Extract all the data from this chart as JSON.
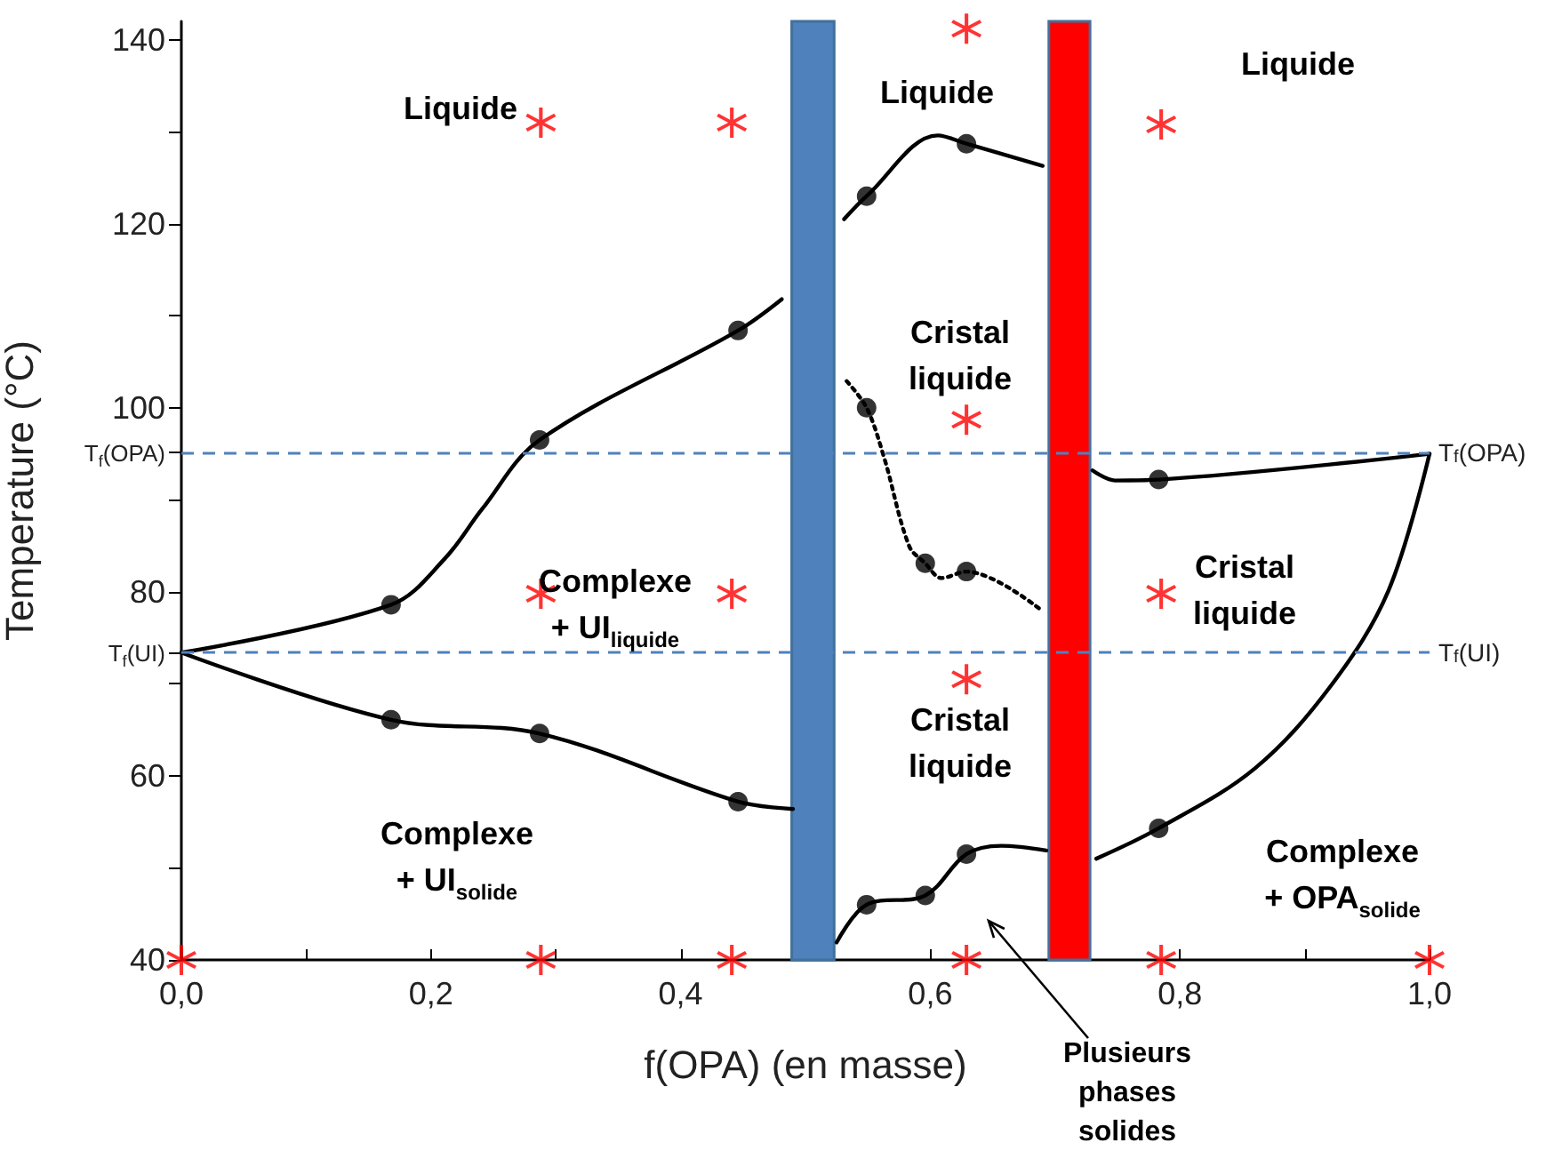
{
  "chart_data": {
    "type": "line",
    "xlabel": "f(OPA) (en masse)",
    "ylabel": "Temperature (°C)",
    "xlim": [
      0,
      1
    ],
    "xticks": [
      {
        "value": 0,
        "label": "0,0"
      },
      {
        "value": 0.1,
        "label": null
      },
      {
        "value": 0.2,
        "label": "0,2"
      },
      {
        "value": 0.3,
        "label": null
      },
      {
        "value": 0.4,
        "label": "0,4"
      },
      {
        "value": 0.5,
        "label": null
      },
      {
        "value": 0.6,
        "label": "0,6"
      },
      {
        "value": 0.7,
        "label": null
      },
      {
        "value": 0.8,
        "label": "0,8"
      },
      {
        "value": 0.9,
        "label": null
      },
      {
        "value": 1,
        "label": "1,0"
      }
    ],
    "ylim": [
      40,
      142
    ],
    "yticks": [
      40,
      {
        "value": 50,
        "label": null
      },
      60,
      {
        "value": 70,
        "label": null
      },
      {
        "value": 73.4,
        "label": "T$_{f}$(UI)"
      },
      80,
      {
        "value": 90,
        "label": null
      },
      {
        "value": 95.2,
        "label": "T$_{f}$(OPA)"
      },
      100,
      {
        "value": 110,
        "label": null
      },
      120,
      {
        "value": 130,
        "label": null
      },
      140
    ],
    "grid": false,
    "series": [
      {
        "color": "#000000",
        "marker": "none",
        "line_style": "solid",
        "x": [
          0,
          0.168,
          0.211,
          0.241,
          0.287,
          0.446,
          0.481
        ],
        "values": [
          73.4,
          78.6,
          83.6,
          89,
          96.5,
          108.4,
          111.8
        ]
      },
      {
        "color": "#000000",
        "marker": "none",
        "line_style": "solid",
        "x": [
          0,
          0.168,
          0.287,
          0.446,
          0.49
        ],
        "values": [
          73.4,
          66.1,
          64.6,
          57.2,
          56.4
        ]
      },
      {
        "color": "#000000",
        "marker": "none",
        "line_style": "solid",
        "x": [
          0.531,
          0.549,
          0.606,
          0.629,
          0.69
        ],
        "values": [
          120.5,
          123,
          129.6,
          128.7,
          126.3
        ]
      },
      {
        "color": "#000000",
        "marker": "none",
        "line_style": "dotted",
        "x": [
          0.533,
          0.549,
          0.563,
          0.583,
          0.596,
          0.609,
          0.629,
          0.69
        ],
        "values": [
          102.9,
          100,
          94.6,
          85,
          83.1,
          81.5,
          82.2,
          77.9
        ]
      },
      {
        "color": "#000000",
        "marker": "none",
        "line_style": "solid",
        "x": [
          0.525,
          0.549,
          0.596,
          0.629,
          0.657,
          0.693
        ],
        "values": [
          41.9,
          46,
          47,
          51.5,
          52.4,
          51.9
        ]
      },
      {
        "color": "#000000",
        "marker": "none",
        "line_style": "solid",
        "x": [
          0.73,
          0.748,
          0.783,
          1
        ],
        "values": [
          93.2,
          92.1,
          92.2,
          95
        ]
      },
      {
        "color": "#000000",
        "marker": "none",
        "line_style": "solid",
        "x": [
          0.733,
          0.783,
          0.86,
          0.921,
          0.967,
          1
        ],
        "values": [
          51,
          54.3,
          60.8,
          69.8,
          80.1,
          95
        ]
      },
      {
        "type": "scatter",
        "color": "#000000",
        "marker": "circle",
        "x": [
          0.168,
          0.287,
          0.446,
          0.168,
          0.287,
          0.446,
          0.549,
          0.629,
          0.549,
          0.596,
          0.629,
          0.549,
          0.596,
          0.629,
          0.783,
          0.783
        ],
        "values": [
          78.6,
          96.5,
          108.4,
          66.1,
          64.6,
          57.2,
          123,
          128.7,
          100,
          83.1,
          82.2,
          46,
          47,
          51.5,
          92.2,
          54.3
        ]
      },
      {
        "type": "scatter",
        "color": "#ff0000",
        "marker": "star",
        "x": [
          0,
          0.288,
          0.441,
          0.629,
          0.785,
          1,
          0.288,
          0.441,
          0.288,
          0.441,
          0.629,
          0.629,
          0.629,
          0.785,
          0.785
        ],
        "values": [
          40,
          40,
          40,
          40,
          40,
          40,
          131,
          131,
          79.8,
          79.8,
          141.2,
          98.7,
          70.5,
          130.8,
          79.8
        ]
      }
    ],
    "ref_lines": [
      {
        "axis": "y",
        "value": 95.2,
        "label": "T$_{f}$(OPA)",
        "color": "#4f81bd",
        "line_style": "dashed"
      },
      {
        "axis": "y",
        "value": 73.4,
        "label": "T$_{f}$(UI)",
        "color": "#4f81bd",
        "line_style": "dashed"
      }
    ],
    "bands": [
      {
        "axis": "x",
        "from": 0.489,
        "to": 0.523,
        "color": "#4f81bd"
      },
      {
        "axis": "x",
        "from": 0.695,
        "to": 0.728,
        "color": "#ff0000"
      }
    ],
    "annotations": [
      "Liquide",
      "Liquide",
      "Liquide",
      "Cristal\nliquide",
      "Complexe\n+ UI$_{liquide}$",
      "Cristal\nliquide",
      "Cristal\nliquide",
      "Complexe\n+ UI$_{solide}$",
      "Complexe\n+ OPA$_{solide}$",
      "Plusieurs\nphases\nsolides"
    ]
  }
}
